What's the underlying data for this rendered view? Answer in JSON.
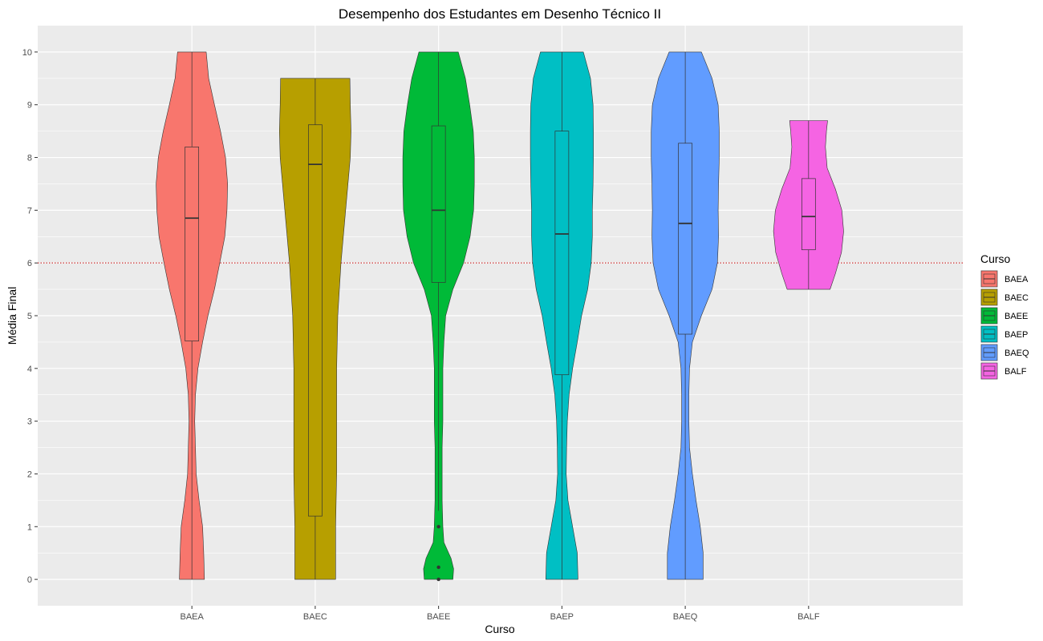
{
  "chart_data": {
    "type": "violin",
    "title": "Desempenho dos Estudantes em Desenho Técnico II",
    "xlabel": "Curso",
    "ylabel": "Média Final",
    "ylim": [
      -0.5,
      10.5
    ],
    "yticks": [
      0,
      1,
      2,
      3,
      4,
      5,
      6,
      7,
      8,
      9,
      10
    ],
    "categories": [
      "BAEA",
      "BAEC",
      "BAEE",
      "BAEP",
      "BAEQ",
      "BALF"
    ],
    "reference_line": {
      "y": 6,
      "style": "dotted",
      "color": "#c00000"
    },
    "grid": true,
    "legend": {
      "title": "Curso",
      "position": "right"
    },
    "series": [
      {
        "name": "BAEA",
        "color": "#F8766D",
        "box": {
          "q1": 4.52,
          "median": 6.85,
          "q3": 8.2,
          "whisker_low": 0,
          "whisker_high": 10
        },
        "outliers": [],
        "density": [
          [
            0,
            0.35
          ],
          [
            0.5,
            0.33
          ],
          [
            1,
            0.3
          ],
          [
            1.5,
            0.2
          ],
          [
            2,
            0.12
          ],
          [
            2.5,
            0.1
          ],
          [
            3,
            0.08
          ],
          [
            3.5,
            0.1
          ],
          [
            4,
            0.17
          ],
          [
            4.5,
            0.3
          ],
          [
            5,
            0.45
          ],
          [
            5.5,
            0.63
          ],
          [
            6,
            0.78
          ],
          [
            6.5,
            0.92
          ],
          [
            7,
            0.98
          ],
          [
            7.5,
            1.0
          ],
          [
            8,
            0.94
          ],
          [
            8.5,
            0.8
          ],
          [
            9,
            0.63
          ],
          [
            9.5,
            0.47
          ],
          [
            10,
            0.4
          ]
        ]
      },
      {
        "name": "BAEC",
        "color": "#B79F00",
        "box": {
          "q1": 1.2,
          "median": 7.87,
          "q3": 8.62,
          "whisker_low": 0,
          "whisker_high": 9.5
        },
        "outliers": [],
        "density": [
          [
            0,
            0.57
          ],
          [
            1,
            0.57
          ],
          [
            2,
            0.6
          ],
          [
            3,
            0.6
          ],
          [
            4,
            0.6
          ],
          [
            5,
            0.63
          ],
          [
            6,
            0.72
          ],
          [
            7,
            0.85
          ],
          [
            8,
            0.98
          ],
          [
            8.5,
            1.0
          ],
          [
            9,
            0.98
          ],
          [
            9.5,
            0.97
          ]
        ]
      },
      {
        "name": "BAEE",
        "color": "#00BA38",
        "box": {
          "q1": 5.63,
          "median": 7.0,
          "q3": 8.6,
          "whisker_low": 1.3,
          "whisker_high": 10
        },
        "outliers": [
          1.0,
          0.23,
          0.0
        ],
        "density": [
          [
            0,
            0.4
          ],
          [
            0.2,
            0.42
          ],
          [
            0.4,
            0.35
          ],
          [
            0.7,
            0.15
          ],
          [
            1,
            0.12
          ],
          [
            1.5,
            0.1
          ],
          [
            2,
            0.1
          ],
          [
            2.5,
            0.1
          ],
          [
            3,
            0.12
          ],
          [
            3.5,
            0.12
          ],
          [
            4,
            0.12
          ],
          [
            4.5,
            0.15
          ],
          [
            5,
            0.2
          ],
          [
            5.5,
            0.4
          ],
          [
            6,
            0.7
          ],
          [
            6.5,
            0.88
          ],
          [
            7,
            0.98
          ],
          [
            7.5,
            1.0
          ],
          [
            8,
            1.0
          ],
          [
            8.5,
            0.97
          ],
          [
            9,
            0.87
          ],
          [
            9.5,
            0.75
          ],
          [
            10,
            0.55
          ]
        ]
      },
      {
        "name": "BAEP",
        "color": "#00BFC4",
        "box": {
          "q1": 3.88,
          "median": 6.55,
          "q3": 8.5,
          "whisker_low": 0,
          "whisker_high": 10
        },
        "outliers": [],
        "density": [
          [
            0,
            0.45
          ],
          [
            0.5,
            0.43
          ],
          [
            1,
            0.3
          ],
          [
            1.5,
            0.17
          ],
          [
            2,
            0.12
          ],
          [
            2.5,
            0.13
          ],
          [
            3,
            0.15
          ],
          [
            3.5,
            0.2
          ],
          [
            4,
            0.3
          ],
          [
            4.5,
            0.43
          ],
          [
            5,
            0.55
          ],
          [
            5.5,
            0.72
          ],
          [
            6,
            0.82
          ],
          [
            6.5,
            0.85
          ],
          [
            7,
            0.85
          ],
          [
            7.5,
            0.87
          ],
          [
            8,
            0.88
          ],
          [
            8.5,
            0.88
          ],
          [
            9,
            0.87
          ],
          [
            9.5,
            0.8
          ],
          [
            10,
            0.6
          ]
        ]
      },
      {
        "name": "BAEQ",
        "color": "#619CFF",
        "box": {
          "q1": 4.65,
          "median": 6.75,
          "q3": 8.27,
          "whisker_low": 0,
          "whisker_high": 10
        },
        "outliers": [],
        "density": [
          [
            0,
            0.5
          ],
          [
            0.5,
            0.5
          ],
          [
            1,
            0.42
          ],
          [
            1.5,
            0.3
          ],
          [
            2,
            0.2
          ],
          [
            2.5,
            0.12
          ],
          [
            3,
            0.1
          ],
          [
            3.5,
            0.1
          ],
          [
            4,
            0.12
          ],
          [
            4.5,
            0.2
          ],
          [
            5,
            0.45
          ],
          [
            5.5,
            0.75
          ],
          [
            6,
            0.9
          ],
          [
            6.5,
            0.93
          ],
          [
            7,
            0.92
          ],
          [
            7.5,
            0.93
          ],
          [
            8,
            0.95
          ],
          [
            8.5,
            0.95
          ],
          [
            9,
            0.92
          ],
          [
            9.5,
            0.75
          ],
          [
            10,
            0.45
          ]
        ]
      },
      {
        "name": "BALF",
        "color": "#F564E3",
        "box": {
          "q1": 6.25,
          "median": 6.88,
          "q3": 7.6,
          "whisker_low": 5.5,
          "whisker_high": 8.7
        },
        "outliers": [],
        "density": [
          [
            5.5,
            0.6
          ],
          [
            5.8,
            0.75
          ],
          [
            6.2,
            0.92
          ],
          [
            6.6,
            0.98
          ],
          [
            7,
            0.93
          ],
          [
            7.4,
            0.75
          ],
          [
            7.8,
            0.52
          ],
          [
            8.2,
            0.47
          ],
          [
            8.5,
            0.5
          ],
          [
            8.7,
            0.53
          ]
        ]
      }
    ]
  }
}
